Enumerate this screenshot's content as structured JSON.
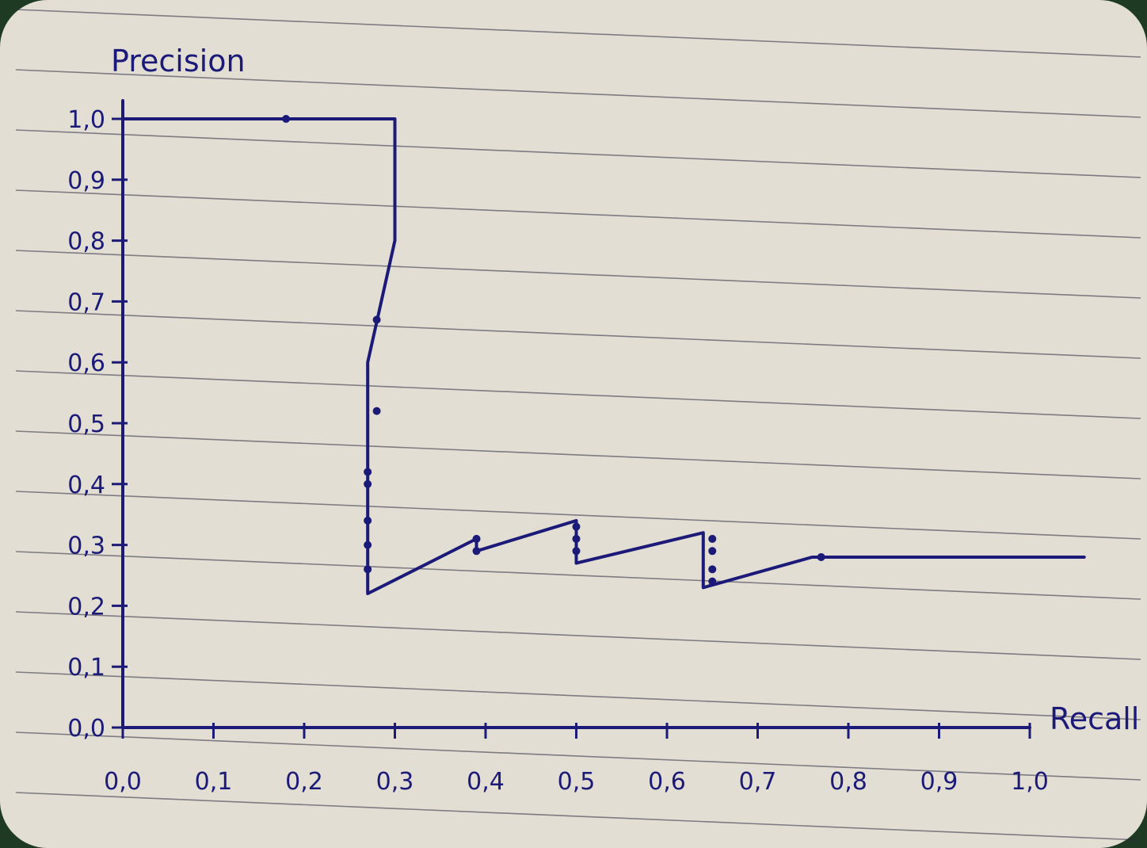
{
  "chart_data": {
    "type": "line",
    "title": "",
    "xlabel": "Recall",
    "ylabel": "Precision",
    "xlim": [
      0,
      1
    ],
    "ylim": [
      0,
      1
    ],
    "grid": false,
    "legend": "none",
    "x_ticks": [
      "0,0",
      "0,1",
      "0,2",
      "0,3",
      "0,4",
      "0,5",
      "0,6",
      "0,7",
      "0,8",
      "0,9",
      "1,0"
    ],
    "y_ticks": [
      "0,0",
      "0,1",
      "0,2",
      "0,3",
      "0,4",
      "0,5",
      "0,6",
      "0,7",
      "0,8",
      "0,9",
      "1,0"
    ],
    "series": [
      {
        "line": [
          [
            0.0,
            0.0
          ],
          [
            0.0,
            1.0
          ],
          [
            0.2,
            1.0
          ],
          [
            0.3,
            1.0
          ],
          [
            0.3,
            0.8
          ],
          [
            0.27,
            0.6
          ],
          [
            0.27,
            0.4
          ],
          [
            0.27,
            0.22
          ],
          [
            0.39,
            0.31
          ],
          [
            0.39,
            0.29
          ],
          [
            0.5,
            0.34
          ],
          [
            0.5,
            0.27
          ],
          [
            0.64,
            0.32
          ],
          [
            0.64,
            0.23
          ],
          [
            0.76,
            0.28
          ],
          [
            1.06,
            0.28
          ]
        ],
        "points": [
          [
            0.18,
            1.0
          ],
          [
            0.28,
            0.67
          ],
          [
            0.28,
            0.52
          ],
          [
            0.27,
            0.42
          ],
          [
            0.27,
            0.4
          ],
          [
            0.27,
            0.34
          ],
          [
            0.27,
            0.3
          ],
          [
            0.27,
            0.26
          ],
          [
            0.39,
            0.31
          ],
          [
            0.39,
            0.29
          ],
          [
            0.5,
            0.33
          ],
          [
            0.5,
            0.31
          ],
          [
            0.5,
            0.29
          ],
          [
            0.65,
            0.31
          ],
          [
            0.65,
            0.29
          ],
          [
            0.65,
            0.26
          ],
          [
            0.65,
            0.24
          ],
          [
            0.77,
            0.28
          ]
        ]
      }
    ]
  },
  "colors": {
    "paper": "#e3ded3",
    "ruling": "#2a2a44",
    "ink": "#1b1a78"
  }
}
